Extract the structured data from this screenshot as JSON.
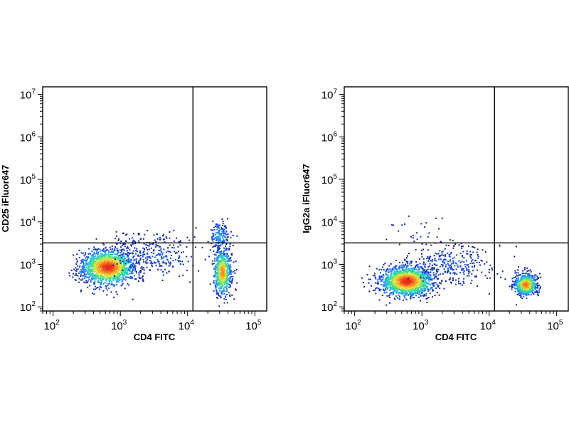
{
  "chart_data": [
    {
      "type": "scatter",
      "subtype": "flow-cytometry-density-dot-plot",
      "xlabel": "CD4 FITC",
      "ylabel": "CD25 iFluor647",
      "xscale": "log",
      "yscale": "log",
      "xlim": [
        70,
        150000
      ],
      "ylim": [
        80,
        15000000
      ],
      "x_ticks": [
        {
          "base": "10",
          "exp": "2"
        },
        {
          "base": "10",
          "exp": "3"
        },
        {
          "base": "10",
          "exp": "4"
        },
        {
          "base": "10",
          "exp": "5"
        }
      ],
      "y_ticks": [
        {
          "base": "10",
          "exp": "2"
        },
        {
          "base": "10",
          "exp": "3"
        },
        {
          "base": "10",
          "exp": "4"
        },
        {
          "base": "10",
          "exp": "5"
        },
        {
          "base": "10",
          "exp": "6"
        },
        {
          "base": "10",
          "exp": "7"
        }
      ],
      "quadrant_gates": {
        "x": 12000,
        "y": 3200
      },
      "grid": false,
      "color_scale": [
        "#0a1a9c",
        "#1f5bff",
        "#21c4e8",
        "#3de07a",
        "#e6e83a",
        "#ff8a1f",
        "#e3201b"
      ],
      "populations": [
        {
          "center_x": 650,
          "center_y": 850,
          "spread_log_x": 0.2,
          "spread_log_y": 0.21,
          "weight": 1500,
          "peak_density": 1.0
        },
        {
          "center_x": 33000,
          "center_y": 650,
          "spread_log_x": 0.065,
          "spread_log_y": 0.28,
          "weight": 650,
          "peak_density": 0.85
        },
        {
          "center_x": 30000,
          "center_y": 4500,
          "spread_log_x": 0.08,
          "spread_log_y": 0.16,
          "weight": 160,
          "peak_density": 0.3
        },
        {
          "center_x": 3500,
          "center_y": 1500,
          "spread_log_x": 0.3,
          "spread_log_y": 0.2,
          "weight": 240,
          "peak_density": 0.15
        },
        {
          "center_x": 2500,
          "center_y": 4000,
          "spread_log_x": 0.3,
          "spread_log_y": 0.1,
          "weight": 60,
          "peak_density": 0.1
        }
      ]
    },
    {
      "type": "scatter",
      "subtype": "flow-cytometry-density-dot-plot",
      "xlabel": "CD4 FITC",
      "ylabel": "IgG2a iFluor647",
      "xscale": "log",
      "yscale": "log",
      "xlim": [
        70,
        150000
      ],
      "ylim": [
        80,
        15000000
      ],
      "x_ticks": [
        {
          "base": "10",
          "exp": "2"
        },
        {
          "base": "10",
          "exp": "3"
        },
        {
          "base": "10",
          "exp": "4"
        },
        {
          "base": "10",
          "exp": "5"
        }
      ],
      "y_ticks": [
        {
          "base": "10",
          "exp": "2"
        },
        {
          "base": "10",
          "exp": "3"
        },
        {
          "base": "10",
          "exp": "4"
        },
        {
          "base": "10",
          "exp": "5"
        },
        {
          "base": "10",
          "exp": "6"
        },
        {
          "base": "10",
          "exp": "7"
        }
      ],
      "quadrant_gates": {
        "x": 12000,
        "y": 3200
      },
      "grid": false,
      "color_scale": [
        "#0a1a9c",
        "#1f5bff",
        "#21c4e8",
        "#3de07a",
        "#e6e83a",
        "#ff8a1f",
        "#e3201b"
      ],
      "populations": [
        {
          "center_x": 600,
          "center_y": 400,
          "spread_log_x": 0.2,
          "spread_log_y": 0.18,
          "weight": 1500,
          "peak_density": 1.0
        },
        {
          "center_x": 35000,
          "center_y": 330,
          "spread_log_x": 0.085,
          "spread_log_y": 0.13,
          "weight": 650,
          "peak_density": 0.9
        },
        {
          "center_x": 3000,
          "center_y": 1000,
          "spread_log_x": 0.3,
          "spread_log_y": 0.25,
          "weight": 300,
          "peak_density": 0.15
        },
        {
          "center_x": 800,
          "center_y": 6000,
          "spread_log_x": 0.25,
          "spread_log_y": 0.25,
          "weight": 25,
          "peak_density": 0.05
        }
      ]
    }
  ]
}
